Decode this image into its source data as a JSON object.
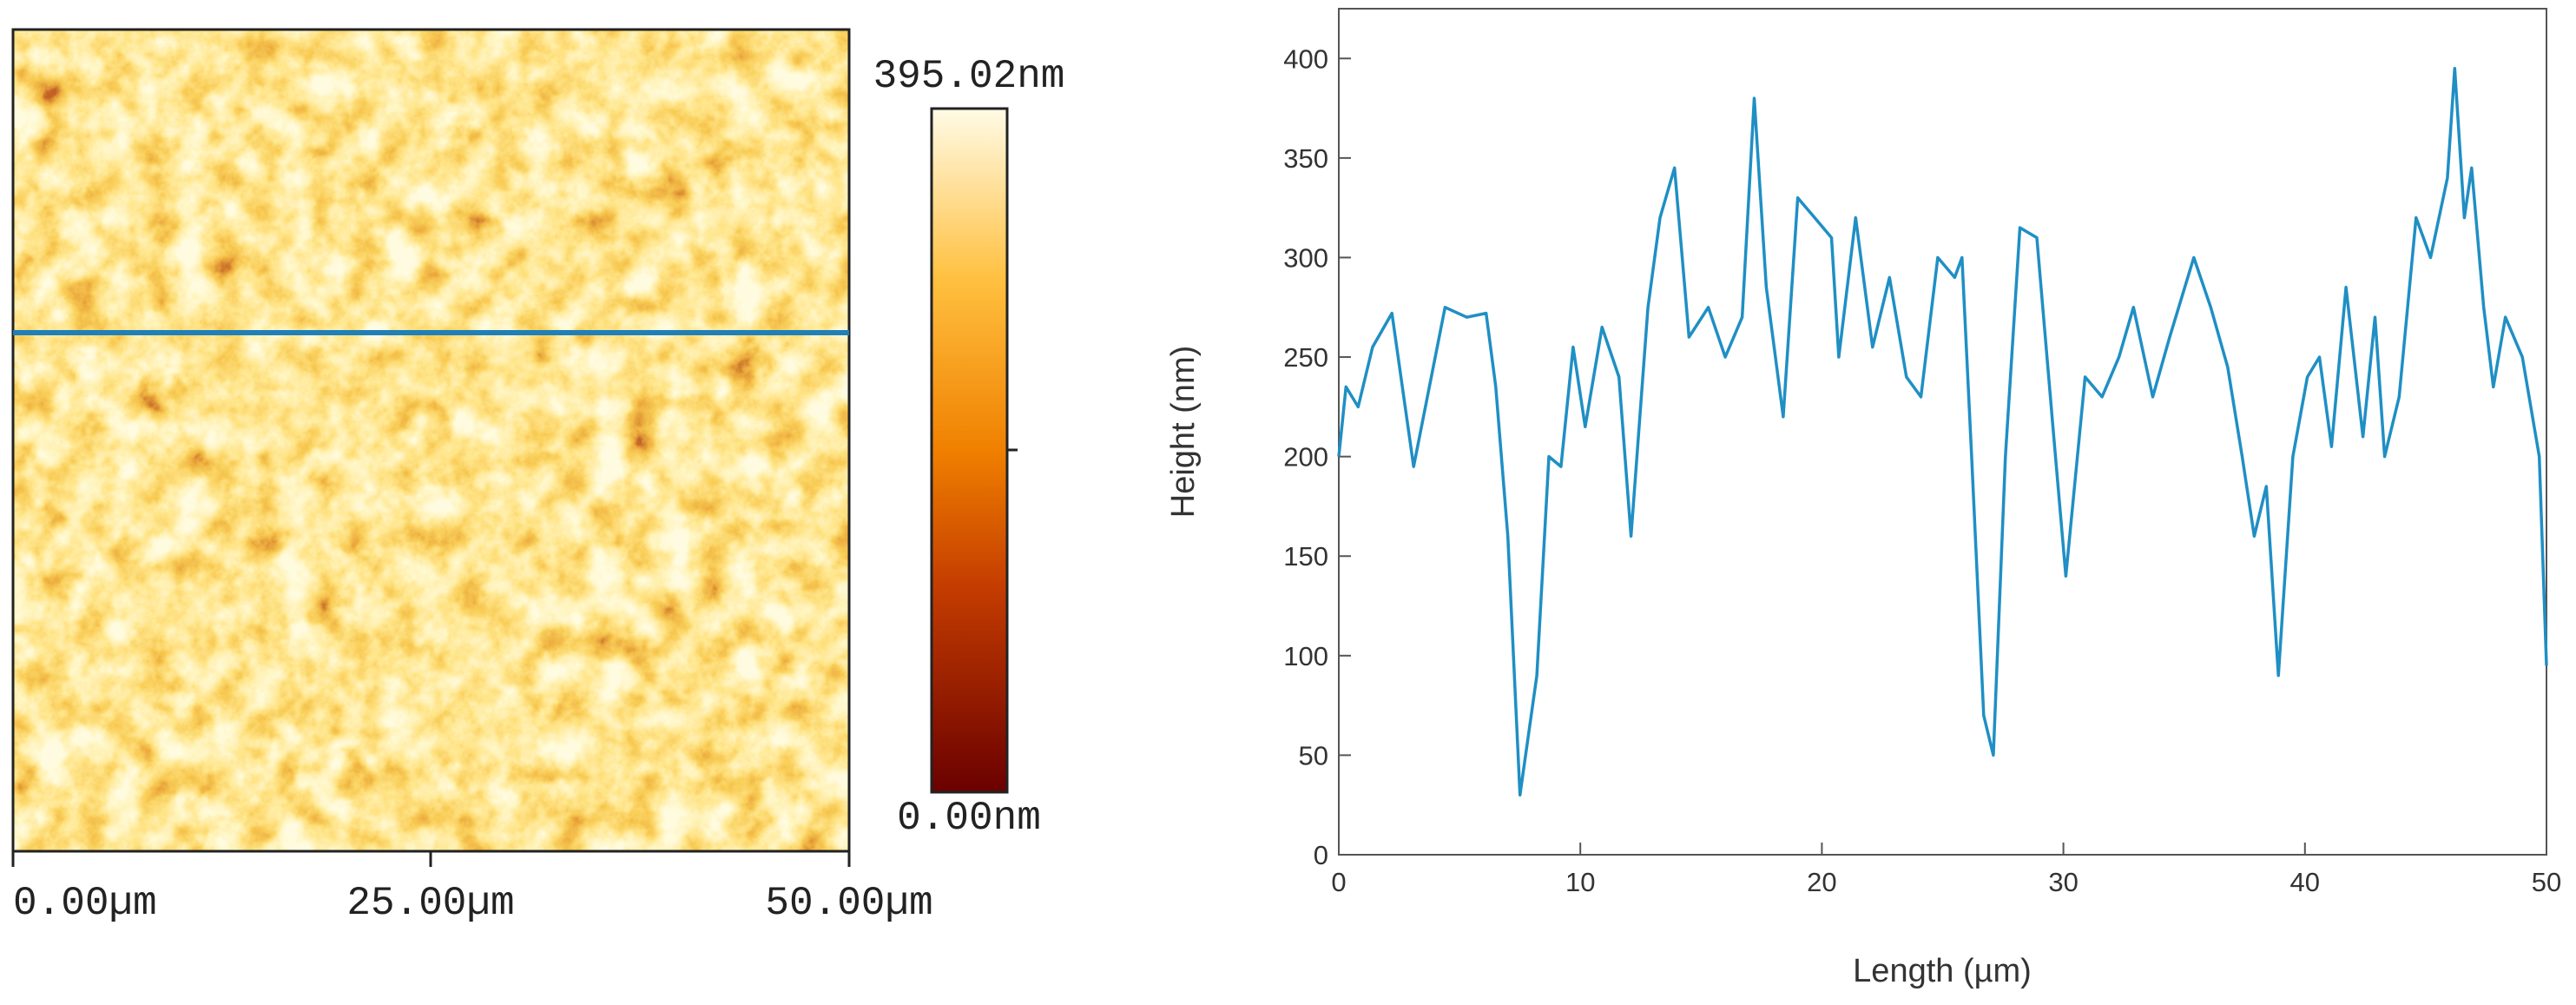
{
  "chart_data": [
    {
      "type": "image",
      "colorbar_max_label": "395.02nm",
      "colorbar_min_label": "0.00nm",
      "x_labels": [
        "0.00µm",
        "25.00µm",
        "50.00µm"
      ]
    },
    {
      "type": "line",
      "xlabel": "Length (µm)",
      "ylabel": "Height (nm)",
      "xlim": [
        0,
        50
      ],
      "ylim": [
        0,
        425
      ],
      "xticks": [
        0,
        10,
        20,
        30,
        40,
        50
      ],
      "yticks": [
        0,
        50,
        100,
        150,
        200,
        250,
        300,
        350,
        400
      ],
      "color": "#1f8fc4",
      "x": [
        0,
        0.3,
        0.8,
        1.4,
        2.2,
        3.1,
        4.4,
        5.3,
        6.1,
        6.5,
        7.0,
        7.5,
        8.2,
        8.7,
        9.2,
        9.7,
        10.2,
        10.9,
        11.6,
        12.1,
        12.8,
        13.3,
        13.9,
        14.5,
        15.3,
        16.0,
        16.7,
        17.2,
        17.7,
        18.4,
        19.0,
        19.7,
        20.4,
        20.7,
        21.4,
        22.1,
        22.8,
        23.5,
        24.1,
        24.8,
        25.5,
        25.8,
        26.2,
        26.7,
        27.1,
        27.6,
        28.2,
        28.9,
        29.6,
        30.1,
        30.9,
        31.6,
        32.3,
        32.9,
        33.7,
        34.4,
        35.4,
        36.1,
        36.8,
        37.4,
        37.9,
        38.4,
        38.9,
        39.5,
        40.1,
        40.6,
        41.1,
        41.7,
        42.4,
        42.9,
        43.3,
        43.9,
        44.6,
        45.2,
        45.9,
        46.2,
        46.6,
        46.9,
        47.4,
        47.8,
        48.3,
        49.0,
        49.7,
        50
      ],
      "values": [
        200,
        235,
        225,
        255,
        272,
        195,
        275,
        270,
        272,
        235,
        160,
        30,
        90,
        200,
        195,
        255,
        215,
        265,
        240,
        160,
        275,
        320,
        345,
        260,
        275,
        250,
        270,
        380,
        285,
        220,
        330,
        320,
        310,
        250,
        320,
        255,
        290,
        240,
        230,
        300,
        290,
        300,
        200,
        70,
        50,
        200,
        315,
        310,
        210,
        140,
        240,
        230,
        250,
        275,
        230,
        260,
        300,
        275,
        245,
        200,
        160,
        185,
        90,
        200,
        240,
        250,
        205,
        285,
        210,
        270,
        200,
        230,
        320,
        300,
        340,
        395,
        320,
        345,
        275,
        235,
        270,
        250,
        200,
        95
      ]
    }
  ]
}
